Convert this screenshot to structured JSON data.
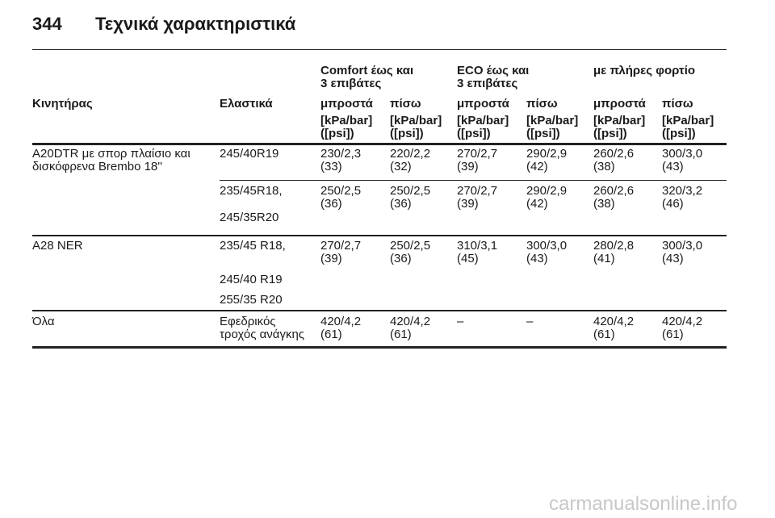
{
  "header": {
    "page_number": "344",
    "title": "Τεχνικά χαρακτηριστικά"
  },
  "table": {
    "group_headers": [
      "Comfort έως και\n3 επιβάτες",
      "ECO έως και\n3 επιβάτες",
      "με πλήρες φορτίο"
    ],
    "columns": [
      "Κινητήρας",
      "Ελαστικά",
      "μπροστά",
      "πίσω",
      "μπροστά",
      "πίσω",
      "μπροστά",
      "πίσω"
    ],
    "units": [
      "[kPa/bar]\n([psi])",
      "[kPa/bar]\n([psi])",
      "[kPa/bar]\n([psi])",
      "[kPa/bar]\n([psi])",
      "[kPa/bar]\n([psi])",
      "[kPa/bar]\n([psi])"
    ],
    "rows": [
      {
        "engine": "A20DTR με σπορ πλαίσιο και\nδισκόφρενα Brembo 18''",
        "groups": [
          {
            "tyres": [
              "245/40R19"
            ],
            "values": [
              "230/2,3\n(33)",
              "220/2,2\n(32)",
              "270/2,7\n(39)",
              "290/2,9\n(42)",
              "260/2,6\n(38)",
              "300/3,0\n(43)"
            ]
          },
          {
            "tyres": [
              "235/45R18,",
              "245/35R20"
            ],
            "values": [
              "250/2,5\n(36)",
              "250/2,5\n(36)",
              "270/2,7\n(39)",
              "290/2,9\n(42)",
              "260/2,6\n(38)",
              "320/3,2\n(46)"
            ]
          }
        ]
      },
      {
        "engine": "A28 NER",
        "groups": [
          {
            "tyres": [
              "235/45 R18,",
              "245/40 R19",
              "255/35 R20"
            ],
            "values": [
              "270/2,7\n(39)",
              "250/2,5\n(36)",
              "310/3,1\n(45)",
              "300/3,0\n(43)",
              "280/2,8\n(41)",
              "300/3,0\n(43)"
            ]
          }
        ]
      },
      {
        "engine": "Όλα",
        "groups": [
          {
            "tyres": [
              "Εφεδρικός\nτροχός ανάγκης"
            ],
            "values": [
              "420/4,2\n(61)",
              "420/4,2\n(61)",
              "–",
              "–",
              "420/4,2\n(61)",
              "420/4,2\n(61)"
            ]
          }
        ]
      }
    ]
  },
  "watermark": "carmanualsonline.info"
}
